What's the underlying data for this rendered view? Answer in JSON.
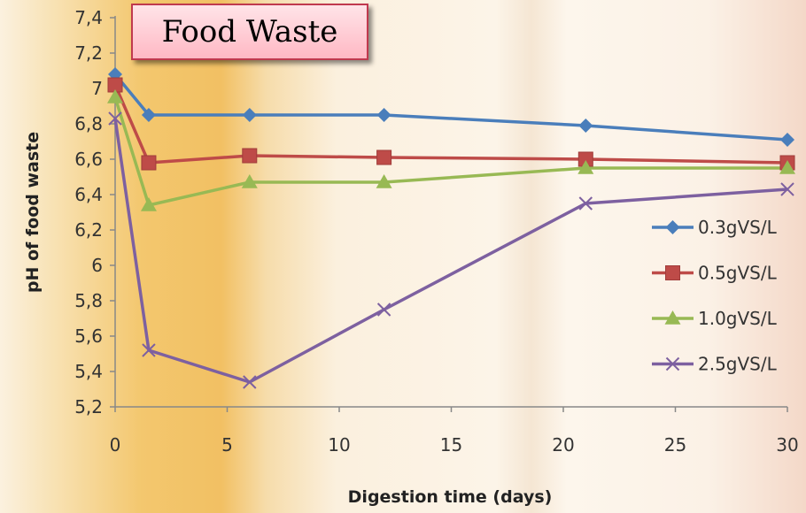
{
  "title": "Food Waste",
  "chart_data": {
    "type": "line",
    "xlabel": "Digestion time (days)",
    "ylabel": "pH of food waste",
    "xlim": [
      0,
      30
    ],
    "ylim": [
      5.2,
      7.4
    ],
    "xticks": [
      0,
      5,
      10,
      15,
      20,
      25,
      30
    ],
    "yticks": [
      5.2,
      5.4,
      5.6,
      5.8,
      6,
      6.2,
      6.4,
      6.6,
      6.8,
      7,
      7.2,
      7.4
    ],
    "ytick_labels": [
      "5,2",
      "5,4",
      "5,6",
      "5,8",
      "6",
      "6,2",
      "6,4",
      "6,6",
      "6,8",
      "7",
      "7,2",
      "7,4"
    ],
    "x": [
      0,
      1.5,
      6,
      12,
      21,
      30
    ],
    "grid": false,
    "legend_position": "right",
    "series": [
      {
        "name": "0.3gVS/L",
        "color": "#4a7ebb",
        "marker": "diamond",
        "values": [
          7.08,
          6.85,
          6.85,
          6.85,
          6.79,
          6.71
        ]
      },
      {
        "name": "0.5gVS/L",
        "color": "#be4b48",
        "marker": "square",
        "values": [
          7.02,
          6.58,
          6.62,
          6.61,
          6.6,
          6.58
        ]
      },
      {
        "name": "1.0gVS/L",
        "color": "#98b954",
        "marker": "triangle",
        "values": [
          6.95,
          6.34,
          6.47,
          6.47,
          6.55,
          6.55
        ]
      },
      {
        "name": "2.5gVS/L",
        "color": "#7d60a0",
        "marker": "x",
        "values": [
          6.83,
          5.52,
          5.34,
          5.75,
          6.35,
          6.43
        ]
      }
    ]
  }
}
